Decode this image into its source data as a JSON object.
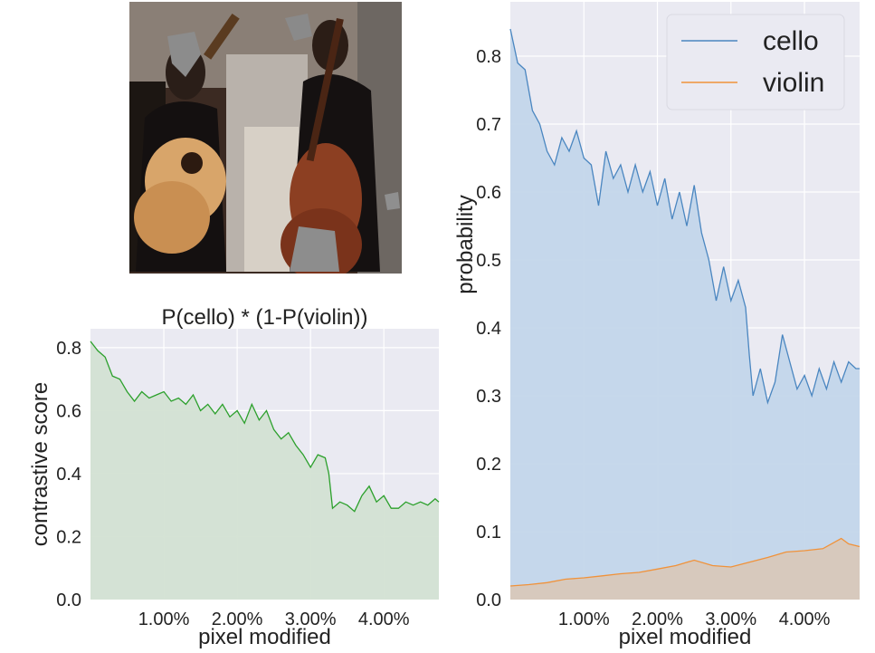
{
  "chart_data": [
    {
      "type": "area",
      "title": "P(cello) * (1-P(violin))",
      "xlabel": "pixel modified",
      "ylabel": "contrastive score",
      "xlim": [
        0,
        4.75
      ],
      "ylim": [
        0,
        0.86
      ],
      "x_ticks": [
        1,
        2,
        3,
        4
      ],
      "x_tick_labels": [
        "1.00%",
        "2.00%",
        "3.00%",
        "4.00%"
      ],
      "y_ticks": [
        0,
        0.2,
        0.4,
        0.6,
        0.8
      ],
      "y_tick_labels": [
        "0.0",
        "0.2",
        "0.4",
        "0.6",
        "0.8"
      ],
      "grid": true,
      "series": [
        {
          "color": "#2ca02c",
          "fill": "#d3e2d3",
          "x": [
            0.0,
            0.1,
            0.2,
            0.3,
            0.4,
            0.5,
            0.6,
            0.7,
            0.8,
            0.9,
            1.0,
            1.1,
            1.2,
            1.3,
            1.4,
            1.5,
            1.6,
            1.7,
            1.8,
            1.9,
            2.0,
            2.1,
            2.2,
            2.3,
            2.4,
            2.5,
            2.6,
            2.7,
            2.8,
            2.9,
            3.0,
            3.1,
            3.2,
            3.25,
            3.3,
            3.4,
            3.5,
            3.6,
            3.7,
            3.8,
            3.9,
            4.0,
            4.1,
            4.2,
            4.3,
            4.4,
            4.5,
            4.6,
            4.7,
            4.75
          ],
          "y": [
            0.82,
            0.79,
            0.77,
            0.71,
            0.7,
            0.66,
            0.63,
            0.66,
            0.64,
            0.65,
            0.66,
            0.63,
            0.64,
            0.62,
            0.65,
            0.6,
            0.62,
            0.59,
            0.62,
            0.58,
            0.6,
            0.56,
            0.62,
            0.57,
            0.6,
            0.54,
            0.51,
            0.53,
            0.49,
            0.46,
            0.42,
            0.46,
            0.45,
            0.4,
            0.29,
            0.31,
            0.3,
            0.28,
            0.33,
            0.36,
            0.31,
            0.33,
            0.29,
            0.29,
            0.31,
            0.3,
            0.31,
            0.3,
            0.32,
            0.31
          ]
        }
      ]
    },
    {
      "type": "area",
      "title": "",
      "xlabel": "pixel modified",
      "ylabel": "probability",
      "xlim": [
        0,
        4.75
      ],
      "ylim": [
        0,
        0.88
      ],
      "x_ticks": [
        1,
        2,
        3,
        4
      ],
      "x_tick_labels": [
        "1.00%",
        "2.00%",
        "3.00%",
        "4.00%"
      ],
      "y_ticks": [
        0,
        0.1,
        0.2,
        0.3,
        0.4,
        0.5,
        0.6,
        0.7,
        0.8
      ],
      "y_tick_labels": [
        "0.0",
        "0.1",
        "0.2",
        "0.3",
        "0.4",
        "0.5",
        "0.6",
        "0.7",
        "0.8"
      ],
      "grid": true,
      "legend": "top-right",
      "series": [
        {
          "name": "cello",
          "color": "#4a86c0",
          "fill": "#c3d6ea",
          "x": [
            0.0,
            0.1,
            0.2,
            0.3,
            0.4,
            0.5,
            0.6,
            0.7,
            0.8,
            0.9,
            1.0,
            1.1,
            1.2,
            1.3,
            1.4,
            1.5,
            1.6,
            1.7,
            1.8,
            1.9,
            2.0,
            2.1,
            2.2,
            2.3,
            2.4,
            2.5,
            2.6,
            2.7,
            2.8,
            2.9,
            3.0,
            3.1,
            3.2,
            3.25,
            3.3,
            3.4,
            3.5,
            3.6,
            3.7,
            3.8,
            3.9,
            4.0,
            4.1,
            4.2,
            4.3,
            4.4,
            4.5,
            4.6,
            4.7,
            4.75
          ],
          "y": [
            0.84,
            0.79,
            0.78,
            0.72,
            0.7,
            0.66,
            0.64,
            0.68,
            0.66,
            0.69,
            0.65,
            0.64,
            0.58,
            0.66,
            0.62,
            0.64,
            0.6,
            0.64,
            0.6,
            0.63,
            0.58,
            0.62,
            0.56,
            0.6,
            0.55,
            0.61,
            0.54,
            0.5,
            0.44,
            0.49,
            0.44,
            0.47,
            0.43,
            0.36,
            0.3,
            0.34,
            0.29,
            0.32,
            0.39,
            0.35,
            0.31,
            0.33,
            0.3,
            0.34,
            0.31,
            0.35,
            0.32,
            0.35,
            0.34,
            0.34
          ]
        },
        {
          "name": "violin",
          "color": "#f0923a",
          "fill": "#d8c8bb",
          "x": [
            0.0,
            0.25,
            0.5,
            0.75,
            1.0,
            1.25,
            1.5,
            1.75,
            2.0,
            2.25,
            2.5,
            2.75,
            3.0,
            3.25,
            3.5,
            3.75,
            4.0,
            4.25,
            4.5,
            4.6,
            4.75
          ],
          "y": [
            0.02,
            0.022,
            0.025,
            0.03,
            0.032,
            0.035,
            0.038,
            0.04,
            0.045,
            0.05,
            0.058,
            0.05,
            0.048,
            0.055,
            0.062,
            0.07,
            0.072,
            0.075,
            0.09,
            0.082,
            0.078
          ]
        }
      ]
    }
  ]
}
